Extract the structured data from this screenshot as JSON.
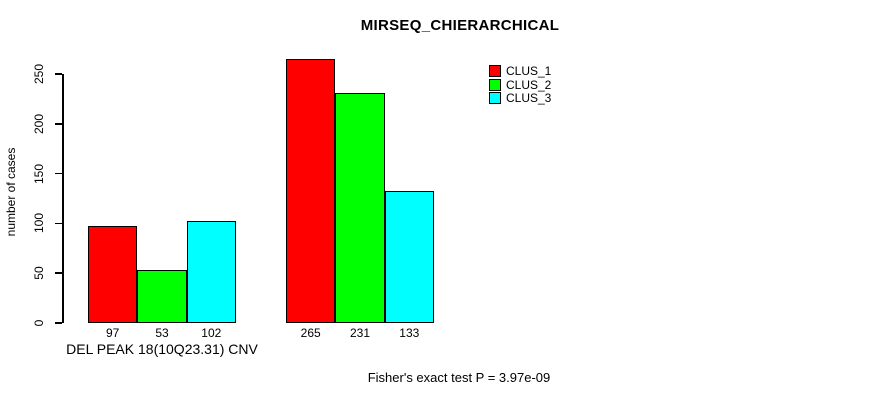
{
  "title": "MIRSEQ_CHIERARCHICAL",
  "chart_data": {
    "type": "bar",
    "title": "MIRSEQ_CHIERARCHICAL",
    "xlabel": "DEL PEAK 18(10Q23.31) CNV",
    "ylabel": "number of cases",
    "ylim": [
      0,
      250
    ],
    "yticks": [
      0,
      50,
      100,
      150,
      200,
      250
    ],
    "grid": false,
    "legend_position": "top-right",
    "bar_border_color": "#000000",
    "series": [
      {
        "name": "CLUS_1",
        "color": "#FF0000"
      },
      {
        "name": "CLUS_2",
        "color": "#00FF00"
      },
      {
        "name": "CLUS_3",
        "color": "#00FFFF"
      }
    ],
    "groups": [
      {
        "label": "DEL PEAK 18(10Q23.31) CNV",
        "values": [
          97,
          53,
          102
        ]
      },
      {
        "label": "",
        "values": [
          265,
          231,
          133
        ]
      }
    ],
    "annotation": "Fisher's exact test P = 3.97e-09"
  },
  "footer": {
    "stat_text": "Fisher's exact test P = 3.97e-09"
  }
}
